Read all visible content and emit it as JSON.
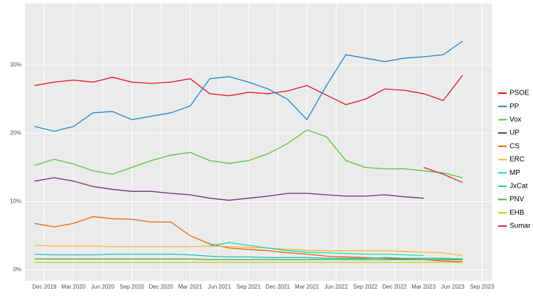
{
  "chart_data": {
    "type": "line",
    "x": [
      "2019-11",
      "2020-01",
      "2020-03",
      "2020-05",
      "2020-07",
      "2020-09",
      "2020-11",
      "2021-01",
      "2021-03",
      "2021-05",
      "2021-07",
      "2021-09",
      "2021-11",
      "2022-01",
      "2022-03",
      "2022-05",
      "2022-07",
      "2022-09",
      "2022-11",
      "2023-01",
      "2023-03",
      "2023-05",
      "2023-07"
    ],
    "xlim": [
      "2019-10",
      "2023-10"
    ],
    "xticks": [
      {
        "value": "2019-12",
        "label": "Dec 2019"
      },
      {
        "value": "2020-03",
        "label": "Mar 2020"
      },
      {
        "value": "2020-06",
        "label": "Jun 2020"
      },
      {
        "value": "2020-09",
        "label": "Sep 2020"
      },
      {
        "value": "2020-12",
        "label": "Dec 2020"
      },
      {
        "value": "2021-03",
        "label": "Mar 2021"
      },
      {
        "value": "2021-06",
        "label": "Jun 2021"
      },
      {
        "value": "2021-09",
        "label": "Sep 2021"
      },
      {
        "value": "2021-12",
        "label": "Dec 2021"
      },
      {
        "value": "2022-03",
        "label": "Mar 2022"
      },
      {
        "value": "2022-06",
        "label": "Jun 2022"
      },
      {
        "value": "2022-09",
        "label": "Sep 2022"
      },
      {
        "value": "2022-12",
        "label": "Dec 2022"
      },
      {
        "value": "2023-03",
        "label": "Mar 2023"
      },
      {
        "value": "2023-06",
        "label": "Jun 2023"
      },
      {
        "value": "2023-09",
        "label": "Sep 2023"
      }
    ],
    "ylim": [
      -1.6,
      39
    ],
    "yticks": [
      {
        "value": 0,
        "label": "0%"
      },
      {
        "value": 10,
        "label": "10%"
      },
      {
        "value": 20,
        "label": "20%"
      },
      {
        "value": 30,
        "label": "30%"
      }
    ],
    "grid": true,
    "legend": "right",
    "series": [
      {
        "name": "PSOE",
        "color": "#e3101c",
        "values": [
          27,
          27.5,
          27.8,
          27.5,
          28.2,
          27.5,
          27.3,
          27.5,
          28,
          25.8,
          25.5,
          26,
          25.8,
          26.2,
          27,
          25.6,
          24.2,
          25,
          26.5,
          26.3,
          25.8,
          24.8,
          28.5
        ]
      },
      {
        "name": "PP",
        "color": "#1d84ce",
        "values": [
          21,
          20.3,
          21,
          23,
          23.2,
          22,
          22.5,
          23,
          24,
          28,
          28.3,
          27.5,
          26.5,
          25,
          22,
          27,
          31.5,
          31,
          30.5,
          31,
          31.2,
          31.5,
          33.5
        ]
      },
      {
        "name": "Vox",
        "color": "#5ac035",
        "values": [
          15.3,
          16.2,
          15.5,
          14.5,
          14,
          15,
          16,
          16.8,
          17.2,
          16,
          15.6,
          16,
          17,
          18.5,
          20.5,
          19.5,
          16,
          15,
          14.8,
          14.8,
          14.5,
          14.2,
          13.5
        ]
      },
      {
        "name": "UP",
        "color": "#6b2e68",
        "values": [
          13,
          13.5,
          13,
          12.2,
          11.8,
          11.5,
          11.5,
          11.2,
          11,
          10.5,
          10.2,
          10.5,
          10.8,
          11.2,
          11.2,
          11,
          10.8,
          10.8,
          11,
          10.7,
          10.5,
          null,
          null
        ]
      },
      {
        "name": "CS",
        "color": "#eb6109",
        "values": [
          6.8,
          6.3,
          6.8,
          7.8,
          7.5,
          7.4,
          7,
          7,
          5,
          3.8,
          3.2,
          3,
          2.8,
          2.5,
          2.3,
          2,
          1.9,
          1.8,
          1.7,
          1.6,
          1.5,
          1.3,
          1.2
        ]
      },
      {
        "name": "ERC",
        "color": "#ffb232",
        "values": [
          3.6,
          3.5,
          3.5,
          3.5,
          3.4,
          3.4,
          3.4,
          3.4,
          3.4,
          3.5,
          3.4,
          3.3,
          3.2,
          3.0,
          2.9,
          2.8,
          2.8,
          2.8,
          2.8,
          2.7,
          2.6,
          2.5,
          2.1
        ]
      },
      {
        "name": "MP",
        "color": "#0fdebd",
        "values": [
          null,
          null,
          null,
          null,
          null,
          null,
          null,
          null,
          null,
          3.5,
          4.0,
          3.6,
          3.2,
          2.8,
          2.6,
          2.5,
          2.4,
          2.3,
          2.3,
          2.2,
          2.1,
          null,
          null
        ]
      },
      {
        "name": "JxCat",
        "color": "#20c0b0",
        "values": [
          2.3,
          2.2,
          2.2,
          2.2,
          2.3,
          2.3,
          2.3,
          2.3,
          2.2,
          2.0,
          1.9,
          1.9,
          1.8,
          1.8,
          1.8,
          1.7,
          1.7,
          1.7,
          1.8,
          1.7,
          1.7,
          1.7,
          1.6
        ]
      },
      {
        "name": "PNV",
        "color": "#4aae4a",
        "values": [
          1.6,
          1.6,
          1.6,
          1.6,
          1.6,
          1.6,
          1.6,
          1.6,
          1.6,
          1.5,
          1.5,
          1.5,
          1.5,
          1.5,
          1.5,
          1.5,
          1.5,
          1.5,
          1.5,
          1.5,
          1.5,
          1.5,
          1.5
        ]
      },
      {
        "name": "EHB",
        "color": "#b5cf18",
        "values": [
          1.1,
          1.1,
          1.1,
          1.1,
          1.1,
          1.1,
          1.1,
          1.1,
          1.1,
          1.1,
          1.1,
          1.1,
          1.1,
          1.1,
          1.1,
          1.1,
          1.1,
          1.1,
          1.1,
          1.1,
          1.1,
          1.1,
          1.1
        ]
      },
      {
        "name": "Sumar",
        "color": "#e51c55",
        "values": [
          null,
          null,
          null,
          null,
          null,
          null,
          null,
          null,
          null,
          null,
          null,
          null,
          null,
          null,
          null,
          null,
          null,
          null,
          null,
          null,
          15,
          14,
          12.8
        ]
      }
    ]
  }
}
